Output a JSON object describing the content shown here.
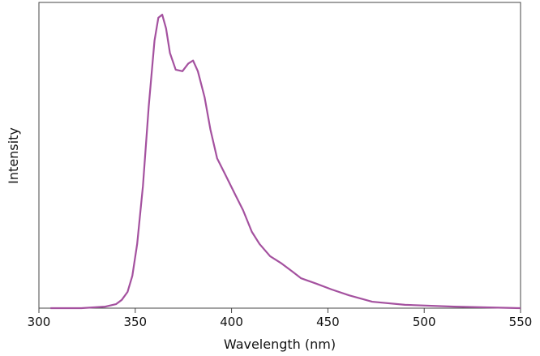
{
  "chart_data": {
    "type": "line",
    "x_label": "Wavelength (nm)",
    "y_label": "Intensity",
    "xlim": [
      300,
      550
    ],
    "xticks": [
      300,
      350,
      400,
      450,
      500,
      550
    ],
    "ylim": [
      0,
      1
    ],
    "series": [
      {
        "color": "#a4519f",
        "x": [
          306,
          322,
          334.5,
          340,
          343,
          346,
          348.5,
          351,
          354,
          357,
          360,
          362,
          364,
          366,
          368,
          371,
          374.5,
          377.5,
          380,
          382.5,
          386,
          389,
          392.5,
          396.5,
          402,
          406,
          410.5,
          414.5,
          420,
          426,
          431.5,
          436,
          444,
          452,
          461,
          473,
          490,
          515.5,
          550
        ],
        "values": [
          0,
          0,
          0.005,
          0.013,
          0.027,
          0.053,
          0.106,
          0.21,
          0.4,
          0.66,
          0.875,
          0.95,
          0.96,
          0.915,
          0.835,
          0.78,
          0.775,
          0.8,
          0.81,
          0.775,
          0.69,
          0.585,
          0.49,
          0.44,
          0.37,
          0.32,
          0.25,
          0.21,
          0.17,
          0.146,
          0.12,
          0.098,
          0.08,
          0.061,
          0.042,
          0.021,
          0.011,
          0.005,
          0
        ]
      }
    ]
  }
}
